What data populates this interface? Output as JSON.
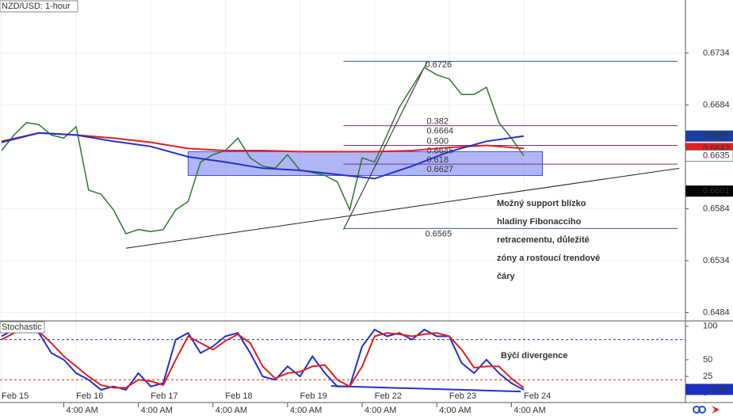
{
  "chart_data": [
    {
      "type": "line",
      "title": "NZD/USD: 1-hour",
      "xlim": [
        0,
        220
      ],
      "ylim": [
        0.6476,
        0.6785
      ],
      "yticks": [
        0.6734,
        0.6684,
        0.6584,
        0.6534,
        0.6484
      ],
      "xticks": [
        {
          "value": 0,
          "label": "Feb 15"
        },
        {
          "value": 24,
          "label": "Feb 16"
        },
        {
          "value": 48,
          "label": "Feb 17"
        },
        {
          "value": 72,
          "label": "Feb 18"
        },
        {
          "value": 96,
          "label": "Feb 19"
        },
        {
          "value": 120,
          "label": "Feb 22"
        },
        {
          "value": 144,
          "label": "Feb 23"
        },
        {
          "value": 168,
          "label": "Feb 24"
        }
      ],
      "time_ticks": [
        {
          "value": 20,
          "label": "4:00 AM"
        },
        {
          "value": 44,
          "label": "4:00 AM"
        },
        {
          "value": 68,
          "label": "4:00 AM"
        },
        {
          "value": 92,
          "label": "4:00 AM"
        },
        {
          "value": 116,
          "label": "4:00 AM"
        },
        {
          "value": 140,
          "label": "4:00 AM"
        },
        {
          "value": 164,
          "label": "4:00 AM"
        }
      ],
      "grid": true,
      "series": [
        {
          "color": "#2a7a2a",
          "x": [
            0,
            4,
            8,
            12,
            16,
            20,
            24,
            28,
            32,
            36,
            40,
            44,
            48,
            52,
            56,
            60,
            64,
            68,
            72,
            76,
            80,
            84,
            88,
            92,
            96,
            100,
            104,
            108,
            112,
            116,
            120,
            124,
            128,
            132,
            136,
            140,
            144,
            148,
            152,
            156,
            160,
            164,
            168
          ],
          "values": [
            0.664,
            0.6655,
            0.6667,
            0.6665,
            0.6655,
            0.6652,
            0.6663,
            0.6602,
            0.6598,
            0.6583,
            0.656,
            0.6564,
            0.6562,
            0.6564,
            0.6583,
            0.6591,
            0.6629,
            0.6636,
            0.664,
            0.6652,
            0.6633,
            0.6625,
            0.6623,
            0.6636,
            0.6621,
            0.6619,
            0.6616,
            0.661,
            0.6583,
            0.6633,
            0.6629,
            0.6655,
            0.6682,
            0.6701,
            0.672,
            0.6713,
            0.6709,
            0.6694,
            0.6694,
            0.6701,
            0.6667,
            0.6652,
            0.6635
          ]
        },
        {
          "color": "#e02020",
          "x": [
            0,
            12,
            24,
            36,
            48,
            60,
            72,
            84,
            96,
            108,
            120,
            132,
            144,
            156,
            168
          ],
          "values": [
            0.6649,
            0.6657,
            0.6655,
            0.6652,
            0.6648,
            0.6642,
            0.664,
            0.664,
            0.6639,
            0.6639,
            0.6639,
            0.664,
            0.6643,
            0.6645,
            0.6642
          ]
        },
        {
          "color": "#2430c8",
          "x": [
            0,
            12,
            24,
            36,
            48,
            60,
            72,
            84,
            96,
            108,
            120,
            132,
            144,
            156,
            168
          ],
          "values": [
            0.6648,
            0.6657,
            0.6655,
            0.6649,
            0.6644,
            0.6634,
            0.6629,
            0.6623,
            0.6621,
            0.6617,
            0.6613,
            0.6625,
            0.6639,
            0.6649,
            0.6654
          ]
        }
      ],
      "zone": {
        "x": [
          60,
          174
        ],
        "y": [
          0.6616,
          0.6639
        ],
        "color": "#7b84ee"
      },
      "trendlines": [
        {
          "x": [
            40,
            218
          ],
          "y": [
            0.6546,
            0.6623
          ],
          "color": "#222222"
        },
        {
          "x": [
            110,
            137
          ],
          "y": [
            0.6564,
            0.6726
          ],
          "color": "#222222"
        }
      ],
      "fib_start": 110,
      "fib_levels": [
        {
          "value": 0.6726,
          "label": "0.6726",
          "color": "#2b5f8f"
        },
        {
          "ratio": "0.382",
          "value": 0.6664,
          "label": "0.6664",
          "color": "#7b2f7b"
        },
        {
          "ratio": "0.500",
          "value": 0.6645,
          "label": "0.6645",
          "color": "#7b2f7b"
        },
        {
          "ratio": "0.618",
          "value": 0.6627,
          "label": "0.6627",
          "color": "#7b2f7b"
        },
        {
          "value": 0.6565,
          "label": "0.6565",
          "color": "#2b5f8f"
        }
      ],
      "price_labels": [
        {
          "value": 0.6654,
          "label": "0.6654",
          "color": "#1b3fa0"
        },
        {
          "value": 0.6642,
          "label": "0.6642",
          "color": "#e02020"
        },
        {
          "value": 0.6635,
          "label": "0.6635",
          "color": "#ffffff"
        },
        {
          "value": 0.6601,
          "label": "0.6601",
          "color": "#000000"
        }
      ],
      "annotation": [
        "Možný support blízko",
        "hladiny Fibonacciho",
        "retracementu, důležité",
        "zóny a rostoucí trendové",
        "čáry"
      ]
    },
    {
      "type": "line",
      "title": "Stochastic",
      "xlim": [
        0,
        220
      ],
      "ylim": [
        -14,
        108
      ],
      "yticks": [
        100,
        50,
        25,
        0
      ],
      "levels": [
        80,
        20
      ],
      "series": [
        {
          "color": "#2430c8",
          "x": [
            0,
            4,
            8,
            12,
            16,
            20,
            24,
            28,
            32,
            36,
            40,
            44,
            48,
            52,
            56,
            60,
            64,
            68,
            72,
            76,
            80,
            84,
            88,
            92,
            96,
            100,
            104,
            108,
            112,
            116,
            120,
            124,
            128,
            132,
            136,
            140,
            144,
            148,
            152,
            156,
            160,
            164,
            168
          ],
          "values": [
            85,
            95,
            95,
            90,
            60,
            50,
            30,
            20,
            5,
            10,
            5,
            30,
            10,
            15,
            80,
            90,
            60,
            70,
            85,
            90,
            60,
            25,
            20,
            40,
            25,
            55,
            30,
            10,
            10,
            70,
            95,
            85,
            90,
            80,
            95,
            85,
            85,
            45,
            30,
            50,
            30,
            15,
            5
          ]
        },
        {
          "color": "#e02020",
          "x": [
            0,
            4,
            8,
            12,
            16,
            20,
            24,
            28,
            32,
            36,
            40,
            44,
            48,
            52,
            56,
            60,
            64,
            68,
            72,
            76,
            80,
            84,
            88,
            92,
            96,
            100,
            104,
            108,
            112,
            116,
            120,
            124,
            128,
            132,
            136,
            140,
            144,
            148,
            152,
            156,
            160,
            164,
            168
          ],
          "values": [
            80,
            90,
            95,
            92,
            75,
            55,
            40,
            25,
            12,
            8,
            8,
            20,
            18,
            12,
            50,
            85,
            75,
            65,
            78,
            88,
            75,
            40,
            22,
            30,
            32,
            40,
            42,
            20,
            10,
            40,
            85,
            90,
            88,
            85,
            88,
            90,
            85,
            65,
            38,
            40,
            40,
            22,
            8
          ]
        }
      ],
      "current": 5.61,
      "trendlines": [
        {
          "x": [
            106,
            167
          ],
          "y": [
            10.7,
            2.4
          ],
          "color": "#2430c8"
        }
      ],
      "annotation": "Býčí divergence"
    }
  ]
}
